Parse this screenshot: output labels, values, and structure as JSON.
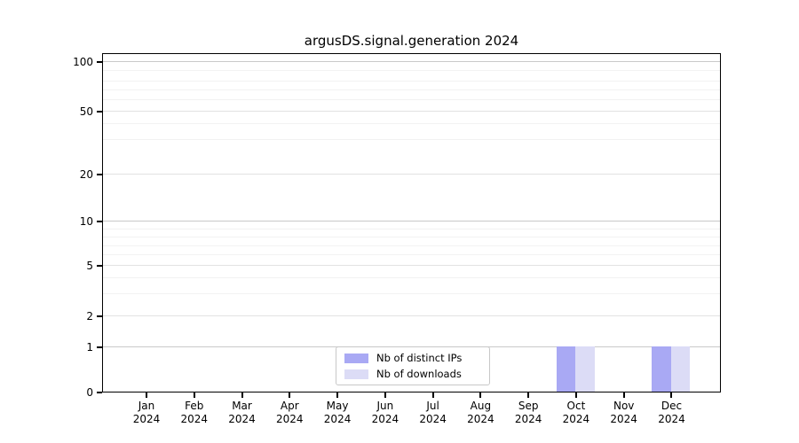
{
  "chart_data": {
    "type": "bar",
    "title": "argusDS.signal.generation 2024",
    "categories": [
      "Jan 2024",
      "Feb 2024",
      "Mar 2024",
      "Apr 2024",
      "May 2024",
      "Jun 2024",
      "Jul 2024",
      "Aug 2024",
      "Sep 2024",
      "Oct 2024",
      "Nov 2024",
      "Dec 2024"
    ],
    "series": [
      {
        "name": "Nb of distinct IPs",
        "color": "#a9a9f4",
        "values": [
          0,
          0,
          0,
          0,
          0,
          0,
          0,
          0,
          0,
          1,
          0,
          1
        ]
      },
      {
        "name": "Nb of downloads",
        "color": "#dcdcf6",
        "values": [
          0,
          0,
          0,
          0,
          0,
          0,
          0,
          0,
          0,
          1,
          0,
          1
        ]
      }
    ],
    "xlabel": "",
    "ylabel": "",
    "x_axis": {
      "months": [
        "Jan",
        "Feb",
        "Mar",
        "Apr",
        "May",
        "Jun",
        "Jul",
        "Aug",
        "Sep",
        "Oct",
        "Nov",
        "Dec"
      ],
      "year": "2024"
    },
    "y_axis": {
      "scale": "symlog",
      "range": [
        0,
        115
      ],
      "tick_values": [
        0,
        1,
        2,
        5,
        10,
        20,
        50,
        100
      ],
      "tick_labels": [
        "0",
        "1",
        "2",
        "5",
        "10",
        "20",
        "50",
        "100"
      ],
      "strong_grid": [
        1,
        10,
        100
      ],
      "mid_grid": [
        2,
        5,
        20,
        50
      ],
      "minor_grid": [
        3,
        4,
        6,
        7,
        8,
        9,
        30,
        40,
        60,
        70,
        80,
        90
      ],
      "scale_fractions": {
        "0": 0,
        "1": 0.1332,
        "2": 0.2246,
        "3": 0.2898,
        "4": 0.3368,
        "5": 0.3734,
        "6": 0.4047,
        "7": 0.4308,
        "8": 0.4569,
        "9": 0.4804,
        "10": 0.5039,
        "20": 0.6423,
        "30": 0.7441,
        "40": 0.7911,
        "50": 0.8277,
        "60": 0.8616,
        "70": 0.8903,
        "80": 0.9164,
        "90": 0.9478,
        "100": 0.9739
      }
    },
    "grid": "horizontal major+minor",
    "legend_position": "lower center"
  }
}
